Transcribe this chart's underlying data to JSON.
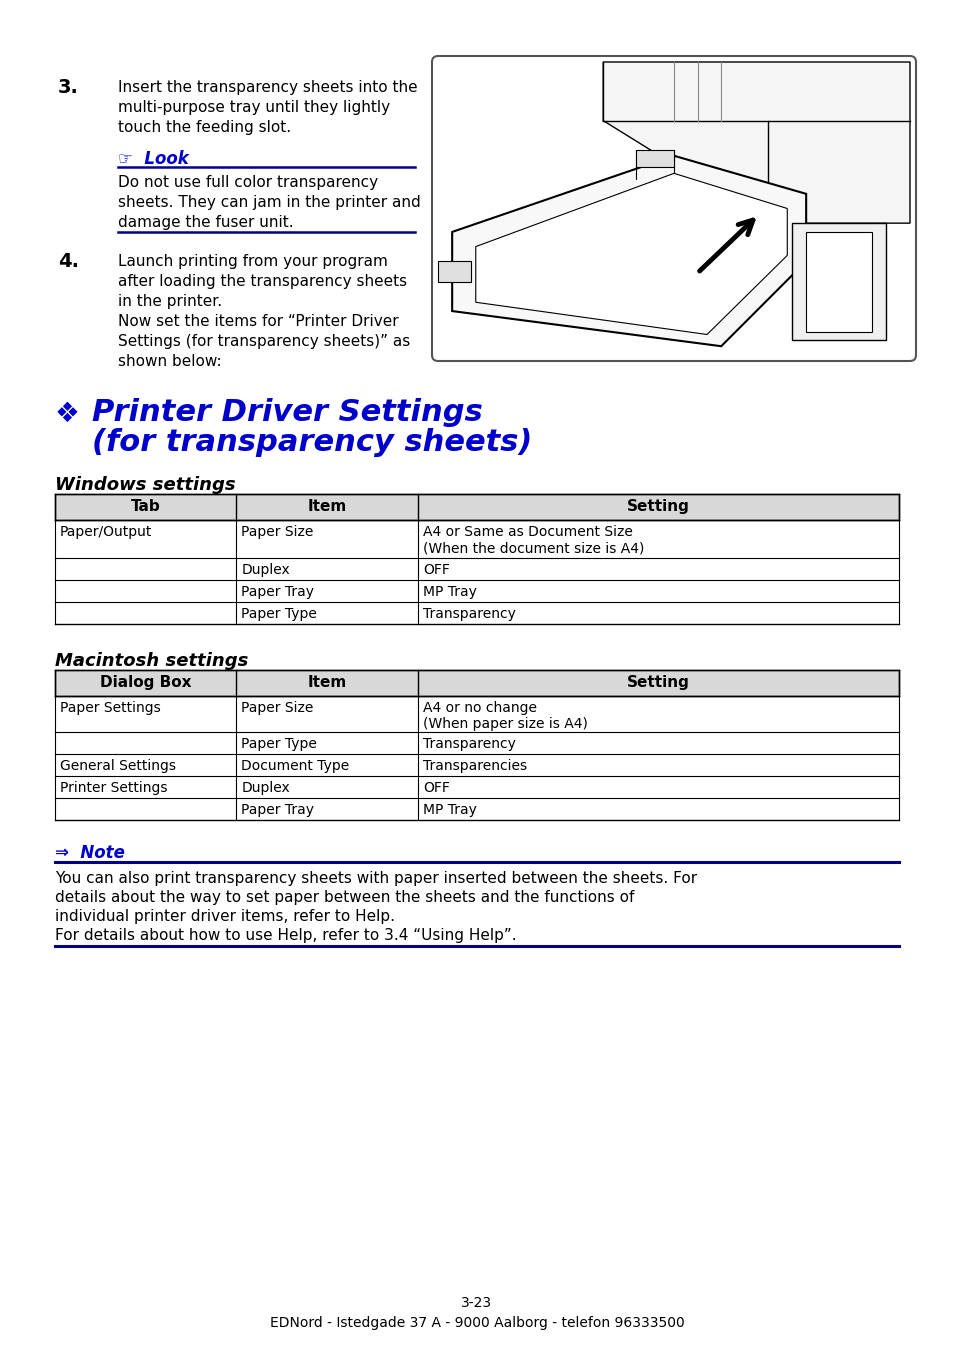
{
  "bg_color": "#ffffff",
  "text_color": "#000000",
  "blue_color": "#0000cc",
  "dark_blue": "#00008B",
  "step3_number": "3.",
  "step3_text_line1": "Insert the transparency sheets into the",
  "step3_text_line2": "multi-purpose tray until they lightly",
  "step3_text_line3": "touch the feeding slot.",
  "look_label": "☞  Look",
  "look_text_line1": "Do not use full color transparency",
  "look_text_line2": "sheets. They can jam in the printer and",
  "look_text_line3": "damage the fuser unit.",
  "step4_number": "4.",
  "step4_text_line1": "Launch printing from your program",
  "step4_text_line2": "after loading the transparency sheets",
  "step4_text_line3": "in the printer.",
  "step4_text_line4": "Now set the items for “Printer Driver",
  "step4_text_line5": "Settings (for transparency sheets)” as",
  "step4_text_line6": "shown below:",
  "diamond": "❖",
  "section_title_line1": "Printer Driver Settings",
  "section_title_line2": "(for transparency sheets)",
  "win_heading": "Windows settings",
  "win_col_headers": [
    "Tab",
    "Item",
    "Setting"
  ],
  "win_rows": [
    [
      "Paper/Output",
      "Paper Size",
      "A4 or Same as Document Size\n(When the document size is A4)"
    ],
    [
      "",
      "Duplex",
      "OFF"
    ],
    [
      "",
      "Paper Tray",
      "MP Tray"
    ],
    [
      "",
      "Paper Type",
      "Transparency"
    ]
  ],
  "mac_heading": "Macintosh settings",
  "mac_col_headers": [
    "Dialog Box",
    "Item",
    "Setting"
  ],
  "mac_rows": [
    [
      "Paper Settings",
      "Paper Size",
      "A4 or no change\n(When paper size is A4)"
    ],
    [
      "",
      "Paper Type",
      "Transparency"
    ],
    [
      "General Settings",
      "Document Type",
      "Transparencies"
    ],
    [
      "Printer Settings",
      "Duplex",
      "OFF"
    ],
    [
      "",
      "Paper Tray",
      "MP Tray"
    ]
  ],
  "note_label": "⇒  Note",
  "note_text_line1": "You can also print transparency sheets with paper inserted between the sheets. For",
  "note_text_line2": "details about the way to set paper between the sheets and the functions of",
  "note_text_line3": "individual printer driver items, refer to Help.",
  "note_text_line4": "For details about how to use Help, refer to 3.4 “Using Help”.",
  "page_num": "3-23",
  "footer": "EDNord - Istedgade 37 A - 9000 Aalborg - telefon 96333500"
}
